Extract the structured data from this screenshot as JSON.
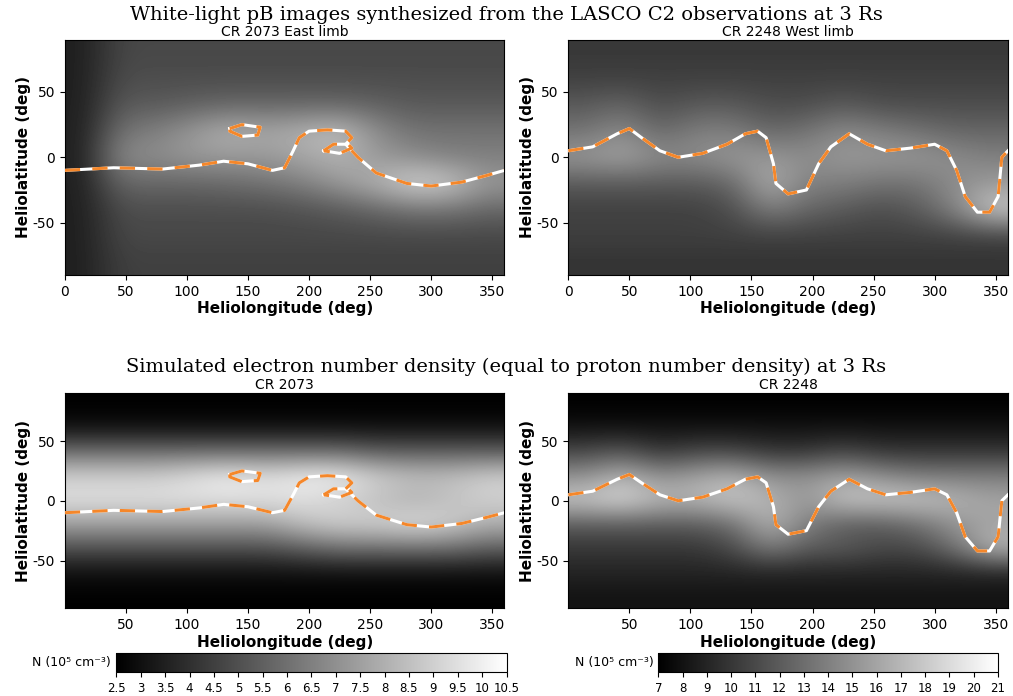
{
  "headings": [
    "White-light pB images synthesized from the LASCO C2 observations at 3 Rs",
    "Simulated electron number density (equal to proton number density) at 3 Rs"
  ],
  "chart_data": [
    {
      "type": "heatmap",
      "title": "CR 2073 East limb",
      "x_label": "Heliolongitude (deg)",
      "y_label": "Heliolatitude (deg)",
      "xlim": [
        0,
        360
      ],
      "ylim": [
        -90,
        90
      ],
      "xticks": [
        0,
        50,
        100,
        150,
        200,
        250,
        300,
        350
      ],
      "yticks": [
        -50,
        0,
        50
      ],
      "x": [
        15,
        45,
        75,
        105,
        135,
        165,
        195,
        225,
        255,
        285,
        315,
        345
      ],
      "y": [
        -80,
        -60,
        -40,
        -20,
        0,
        20,
        40,
        60,
        80
      ],
      "color_range": [
        0,
        1
      ],
      "cells": [
        [
          0.12,
          0.25,
          0.25,
          0.25,
          0.25,
          0.25,
          0.25,
          0.25,
          0.25,
          0.25,
          0.25,
          0.25
        ],
        [
          0.12,
          0.28,
          0.28,
          0.28,
          0.28,
          0.28,
          0.28,
          0.28,
          0.28,
          0.28,
          0.28,
          0.28
        ],
        [
          0.12,
          0.3,
          0.3,
          0.3,
          0.3,
          0.3,
          0.32,
          0.35,
          0.4,
          0.45,
          0.45,
          0.4
        ],
        [
          0.12,
          0.4,
          0.4,
          0.4,
          0.42,
          0.45,
          0.5,
          0.6,
          0.7,
          0.85,
          0.8,
          0.6
        ],
        [
          0.12,
          0.55,
          0.55,
          0.6,
          0.6,
          0.6,
          0.65,
          0.7,
          0.6,
          0.55,
          0.5,
          0.5
        ],
        [
          0.12,
          0.45,
          0.5,
          0.6,
          0.7,
          0.65,
          0.7,
          0.75,
          0.55,
          0.45,
          0.45,
          0.45
        ],
        [
          0.12,
          0.35,
          0.35,
          0.38,
          0.4,
          0.4,
          0.4,
          0.4,
          0.38,
          0.35,
          0.35,
          0.35
        ],
        [
          0.12,
          0.3,
          0.3,
          0.3,
          0.3,
          0.3,
          0.3,
          0.3,
          0.3,
          0.3,
          0.3,
          0.3
        ],
        [
          0.12,
          0.28,
          0.28,
          0.28,
          0.28,
          0.28,
          0.28,
          0.28,
          0.28,
          0.28,
          0.28,
          0.28
        ]
      ],
      "curves": [
        {
          "colors": [
            "#ffffff",
            "#f5872a"
          ],
          "line_style": "dashed",
          "lon": [
            0,
            40,
            80,
            110,
            130,
            150,
            170,
            180,
            187,
            192,
            200,
            215,
            230,
            235,
            230,
            240,
            255,
            280,
            300,
            325,
            345,
            360
          ],
          "lat": [
            -10,
            -8,
            -9,
            -6,
            -3,
            -5,
            -10,
            -8,
            5,
            15,
            20,
            21,
            20,
            15,
            10,
            0,
            -12,
            -20,
            -22,
            -19,
            -14,
            -10
          ]
        },
        {
          "colors": [
            "#ffffff",
            "#f5872a"
          ],
          "line_style": "dashed",
          "lon": [
            135,
            145,
            160,
            158,
            145,
            135,
            135
          ],
          "lat": [
            22,
            25,
            23,
            17,
            16,
            20,
            22
          ]
        },
        {
          "colors": [
            "#ffffff",
            "#f5872a"
          ],
          "line_style": "dashed",
          "lon": [
            212,
            220,
            232,
            235,
            225,
            212
          ],
          "lat": [
            5,
            10,
            10,
            7,
            3,
            5
          ]
        }
      ]
    },
    {
      "type": "heatmap",
      "title": "CR 2248 West limb",
      "x_label": "Heliolongitude (deg)",
      "y_label": "Heliolatitude (deg)",
      "xlim": [
        0,
        360
      ],
      "ylim": [
        -90,
        90
      ],
      "xticks": [
        0,
        50,
        100,
        150,
        200,
        250,
        300,
        350
      ],
      "yticks": [
        -50,
        0,
        50
      ],
      "x": [
        15,
        45,
        75,
        105,
        135,
        165,
        195,
        225,
        255,
        285,
        315,
        345
      ],
      "y": [
        -80,
        -60,
        -40,
        -20,
        0,
        20,
        40,
        60,
        80
      ],
      "color_range": [
        0,
        1
      ],
      "cells": [
        [
          0.2,
          0.2,
          0.2,
          0.2,
          0.2,
          0.2,
          0.2,
          0.2,
          0.2,
          0.2,
          0.2,
          0.2
        ],
        [
          0.25,
          0.25,
          0.25,
          0.25,
          0.25,
          0.25,
          0.25,
          0.25,
          0.25,
          0.25,
          0.25,
          0.25
        ],
        [
          0.25,
          0.25,
          0.25,
          0.25,
          0.3,
          0.5,
          0.4,
          0.35,
          0.3,
          0.35,
          0.5,
          0.8
        ],
        [
          0.35,
          0.35,
          0.35,
          0.35,
          0.4,
          0.7,
          0.5,
          0.5,
          0.45,
          0.45,
          0.55,
          0.6
        ],
        [
          0.6,
          0.65,
          0.55,
          0.55,
          0.6,
          0.6,
          0.55,
          0.6,
          0.6,
          0.6,
          0.55,
          0.5
        ],
        [
          0.45,
          0.55,
          0.4,
          0.5,
          0.5,
          0.4,
          0.45,
          0.55,
          0.5,
          0.45,
          0.4,
          0.4
        ],
        [
          0.35,
          0.4,
          0.3,
          0.35,
          0.35,
          0.3,
          0.3,
          0.35,
          0.3,
          0.3,
          0.3,
          0.3
        ],
        [
          0.25,
          0.25,
          0.25,
          0.25,
          0.25,
          0.25,
          0.25,
          0.25,
          0.25,
          0.25,
          0.25,
          0.25
        ],
        [
          0.22,
          0.22,
          0.22,
          0.22,
          0.22,
          0.22,
          0.22,
          0.22,
          0.22,
          0.22,
          0.22,
          0.22
        ]
      ],
      "curves": [
        {
          "colors": [
            "#ffffff",
            "#f5872a"
          ],
          "line_style": "dashed",
          "lon": [
            0,
            20,
            40,
            50,
            60,
            75,
            90,
            110,
            130,
            145,
            155,
            162,
            168,
            170,
            180,
            195,
            205,
            215,
            230,
            245,
            260,
            280,
            300,
            310,
            318,
            325,
            335,
            345,
            352,
            355,
            360
          ],
          "lat": [
            5,
            8,
            18,
            22,
            15,
            5,
            0,
            3,
            10,
            18,
            20,
            15,
            -5,
            -20,
            -28,
            -25,
            -5,
            8,
            18,
            10,
            5,
            7,
            10,
            5,
            -10,
            -30,
            -42,
            -42,
            -30,
            0,
            5
          ]
        }
      ]
    },
    {
      "type": "heatmap",
      "title": "CR 2073",
      "x_label": "Heliolongitude (deg)",
      "y_label": "Heliolatitude (deg)",
      "xlim": [
        0,
        360
      ],
      "ylim": [
        -90,
        90
      ],
      "xticks": [
        50,
        100,
        150,
        200,
        250,
        300,
        350
      ],
      "yticks": [
        -50,
        0,
        50
      ],
      "x": [
        15,
        45,
        75,
        105,
        135,
        165,
        195,
        225,
        255,
        285,
        315,
        345
      ],
      "y": [
        -80,
        -60,
        -40,
        -20,
        0,
        20,
        40,
        60,
        80
      ],
      "cells": [
        [
          2.5,
          2.5,
          2.5,
          2.5,
          2.5,
          2.5,
          2.5,
          2.5,
          2.5,
          2.5,
          2.5,
          2.5
        ],
        [
          3,
          3,
          3,
          3,
          3,
          3,
          3,
          3,
          3,
          3,
          3,
          3
        ],
        [
          5,
          5,
          5,
          5,
          5,
          5,
          5.5,
          6,
          6,
          6,
          6,
          5.5
        ],
        [
          7.5,
          7.5,
          7.5,
          7.5,
          7.5,
          7.5,
          8.5,
          9,
          9,
          9.5,
          9,
          8
        ],
        [
          9.5,
          9.5,
          9.5,
          9.5,
          9.5,
          9.5,
          9.5,
          9,
          8.5,
          8,
          8.5,
          9
        ],
        [
          9,
          9,
          9,
          9.5,
          10,
          9.5,
          10,
          10,
          9,
          8.5,
          8.5,
          9
        ],
        [
          6,
          6,
          6,
          6,
          6,
          6,
          6,
          6,
          5.5,
          5.5,
          5.5,
          5.5
        ],
        [
          3,
          3,
          3,
          3,
          3,
          3,
          3,
          3,
          3,
          3,
          3,
          3
        ],
        [
          2.5,
          2.5,
          2.5,
          2.5,
          2.5,
          2.5,
          2.5,
          2.5,
          2.5,
          2.5,
          2.5,
          2.5
        ]
      ],
      "colorbar": {
        "label": "N (10⁵ cm⁻³)",
        "range": [
          2.5,
          10.5
        ],
        "ticks": [
          2.5,
          3,
          3.5,
          4,
          4.5,
          5,
          5.5,
          6,
          6.5,
          7,
          7.5,
          8,
          8.5,
          9,
          9.5,
          10,
          10.5
        ]
      },
      "curves": [
        {
          "colors": [
            "#ffffff",
            "#f5872a"
          ],
          "line_style": "dashed",
          "lon": [
            0,
            40,
            80,
            110,
            130,
            150,
            170,
            180,
            187,
            192,
            200,
            215,
            230,
            235,
            230,
            240,
            255,
            280,
            300,
            325,
            345,
            360
          ],
          "lat": [
            -10,
            -8,
            -9,
            -6,
            -3,
            -5,
            -10,
            -8,
            5,
            15,
            20,
            21,
            20,
            15,
            10,
            0,
            -12,
            -20,
            -22,
            -19,
            -14,
            -10
          ]
        },
        {
          "colors": [
            "#ffffff",
            "#f5872a"
          ],
          "line_style": "dashed",
          "lon": [
            135,
            145,
            160,
            158,
            145,
            135,
            135
          ],
          "lat": [
            22,
            25,
            23,
            17,
            16,
            20,
            22
          ]
        },
        {
          "colors": [
            "#ffffff",
            "#f5872a"
          ],
          "line_style": "dashed",
          "lon": [
            212,
            220,
            232,
            235,
            225,
            212
          ],
          "lat": [
            5,
            10,
            10,
            7,
            3,
            5
          ]
        }
      ]
    },
    {
      "type": "heatmap",
      "title": "CR 2248",
      "x_label": "Heliolongitude (deg)",
      "y_label": "Heliolatitude (deg)",
      "xlim": [
        0,
        360
      ],
      "ylim": [
        -90,
        90
      ],
      "xticks": [
        50,
        100,
        150,
        200,
        250,
        300,
        350
      ],
      "yticks": [
        -50,
        0,
        50
      ],
      "x": [
        15,
        45,
        75,
        105,
        135,
        165,
        195,
        225,
        255,
        285,
        315,
        345
      ],
      "y": [
        -80,
        -60,
        -40,
        -20,
        0,
        20,
        40,
        60,
        80
      ],
      "cells": [
        [
          8,
          8,
          8,
          8,
          8,
          8,
          8,
          8,
          8,
          8,
          8,
          8
        ],
        [
          9,
          9,
          9,
          9,
          9,
          9,
          9,
          9,
          9,
          9,
          9,
          9
        ],
        [
          10,
          10,
          10,
          10,
          11,
          14,
          12,
          12,
          11,
          11,
          13,
          17
        ],
        [
          12,
          12,
          12,
          12,
          13,
          17,
          14,
          12,
          12,
          13,
          15,
          16
        ],
        [
          18,
          19,
          17,
          17,
          18,
          17,
          15,
          18,
          18,
          18,
          17,
          16
        ],
        [
          15,
          17,
          15,
          16,
          17,
          15,
          15,
          16,
          15,
          14,
          14,
          14
        ],
        [
          11,
          12,
          10,
          11,
          11,
          10,
          10,
          11,
          10,
          10,
          10,
          10
        ],
        [
          8,
          8,
          8,
          8,
          8,
          8,
          8,
          8,
          8,
          8,
          8,
          8
        ],
        [
          7,
          7,
          7,
          7,
          7,
          7,
          7,
          7,
          7,
          7,
          7,
          7
        ]
      ],
      "colorbar": {
        "label": "N (10⁵ cm⁻³)",
        "range": [
          7,
          21
        ],
        "ticks": [
          7,
          8,
          9,
          10,
          11,
          12,
          13,
          14,
          15,
          16,
          17,
          18,
          19,
          20,
          21
        ]
      },
      "curves": [
        {
          "colors": [
            "#ffffff",
            "#f5872a"
          ],
          "line_style": "dashed",
          "lon": [
            0,
            20,
            40,
            50,
            60,
            75,
            90,
            110,
            130,
            145,
            155,
            162,
            168,
            170,
            180,
            195,
            205,
            215,
            230,
            245,
            260,
            280,
            300,
            310,
            318,
            325,
            335,
            345,
            352,
            355,
            360
          ],
          "lat": [
            5,
            8,
            18,
            22,
            15,
            5,
            0,
            3,
            10,
            18,
            20,
            15,
            -5,
            -20,
            -28,
            -25,
            -5,
            8,
            18,
            10,
            5,
            7,
            10,
            5,
            -10,
            -30,
            -42,
            -42,
            -30,
            0,
            5
          ]
        }
      ]
    }
  ]
}
